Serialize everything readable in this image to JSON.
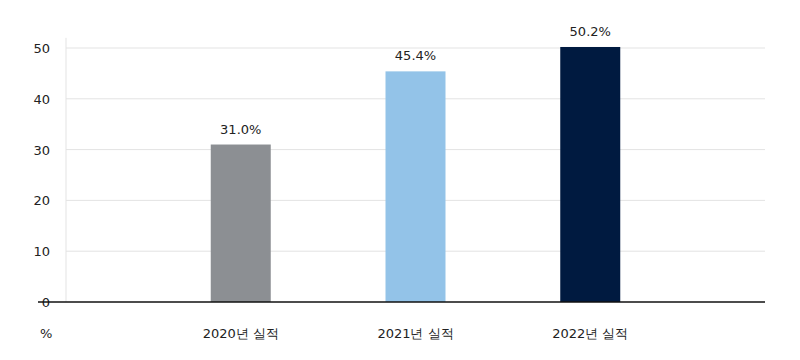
{
  "chart_data": {
    "type": "bar",
    "y_label": "%",
    "categories": [
      "2020년 실적",
      "2021년 실적",
      "2022년 실적"
    ],
    "values": [
      31.0,
      45.4,
      50.2
    ],
    "value_labels": [
      "31.0%",
      "45.4%",
      "50.2%"
    ],
    "colors": [
      "#8c8f93",
      "#93c3e8",
      "#001a40"
    ],
    "ylim": [
      0,
      52
    ],
    "yticks": [
      0,
      10,
      20,
      30,
      40,
      50
    ],
    "grid": true,
    "data_labels": true
  }
}
